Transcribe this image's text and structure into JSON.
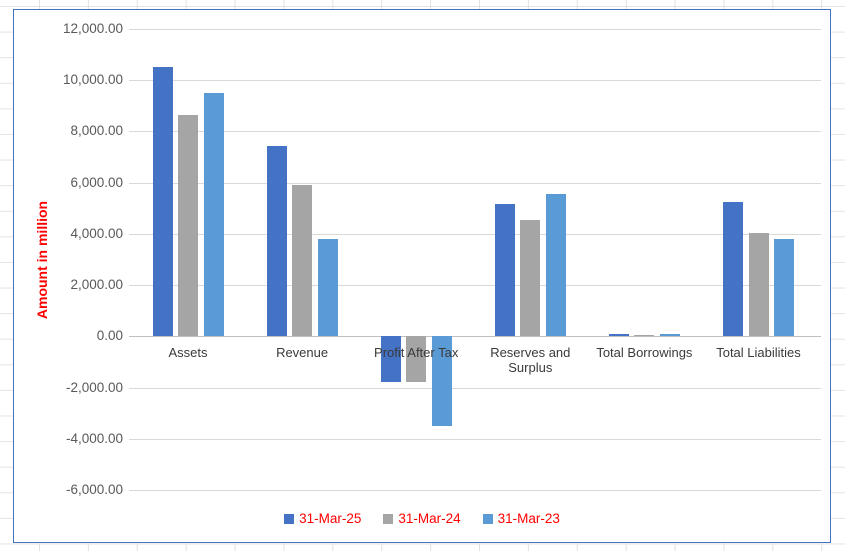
{
  "colors": {
    "series_1": "#4472C4",
    "series_2": "#A5A5A5",
    "series_3": "#5B9BD5",
    "axis_title_color": "#FF0000",
    "legend_text_color": "#FF0000",
    "tick_label_color": "#595959",
    "category_label_color": "#3A3A3A",
    "gridline_color": "#D9D9D9",
    "chart_border_color": "#4472C4"
  },
  "chart_data": {
    "type": "bar",
    "title": "",
    "xlabel": "",
    "ylabel": "Amount in million",
    "categories": [
      "Assets",
      "Revenue",
      "Profit After Tax",
      "Reserves and Surplus",
      "Total Borrowings",
      "Total Liabilities"
    ],
    "series": [
      {
        "name": "31-Mar-25",
        "color": "#4472C4",
        "values": [
          10500,
          7450,
          -1800,
          5150,
          80,
          5250
        ]
      },
      {
        "name": "31-Mar-24",
        "color": "#A5A5A5",
        "values": [
          8650,
          5900,
          -1800,
          4550,
          60,
          4050
        ]
      },
      {
        "name": "31-Mar-23",
        "color": "#5B9BD5",
        "values": [
          9500,
          3800,
          -3500,
          5550,
          80,
          3800
        ]
      }
    ],
    "ylim": [
      -6000,
      12000
    ],
    "ytick_step": 2000,
    "ytick_labels": [
      "12,000.00",
      "10,000.00",
      "8,000.00",
      "6,000.00",
      "4,000.00",
      "2,000.00",
      "0.00",
      "-2,000.00",
      "-4,000.00",
      "-6,000.00"
    ],
    "grid": true,
    "legend_position": "bottom"
  }
}
